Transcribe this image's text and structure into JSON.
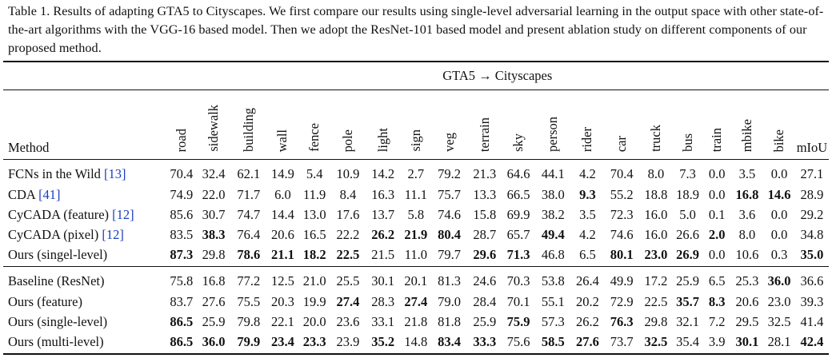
{
  "caption": "Table 1. Results of adapting GTA5 to Cityscapes. We first compare our results using single-level adversarial learning in the output space with other state-of-the-art algorithms with the VGG-16 based model. Then we adopt the ResNet-101 based model and present ablation study on different components of our proposed method.",
  "table": {
    "super_header": "GTA5 → Cityscapes",
    "method_header": "Method",
    "class_headers": [
      "road",
      "sidewalk",
      "building",
      "wall",
      "fence",
      "pole",
      "light",
      "sign",
      "veg",
      "terrain",
      "sky",
      "person",
      "rider",
      "car",
      "truck",
      "bus",
      "train",
      "mbike",
      "bike"
    ],
    "miou_header": "mIoU",
    "groups": [
      {
        "rows": [
          {
            "name": "FCNs in the Wild",
            "cite": "[13]",
            "values": [
              "70.4",
              "32.4",
              "62.1",
              "14.9",
              "5.4",
              "10.9",
              "14.2",
              "2.7",
              "79.2",
              "21.3",
              "64.6",
              "44.1",
              "4.2",
              "70.4",
              "8.0",
              "7.3",
              "0.0",
              "3.5",
              "0.0",
              "27.1"
            ],
            "bold": []
          },
          {
            "name": "CDA",
            "cite": "[41]",
            "values": [
              "74.9",
              "22.0",
              "71.7",
              "6.0",
              "11.9",
              "8.4",
              "16.3",
              "11.1",
              "75.7",
              "13.3",
              "66.5",
              "38.0",
              "9.3",
              "55.2",
              "18.8",
              "18.9",
              "0.0",
              "16.8",
              "14.6",
              "28.9"
            ],
            "bold": [
              12,
              17,
              18
            ]
          },
          {
            "name": "CyCADA (feature)",
            "cite": "[12]",
            "values": [
              "85.6",
              "30.7",
              "74.7",
              "14.4",
              "13.0",
              "17.6",
              "13.7",
              "5.8",
              "74.6",
              "15.8",
              "69.9",
              "38.2",
              "3.5",
              "72.3",
              "16.0",
              "5.0",
              "0.1",
              "3.6",
              "0.0",
              "29.2"
            ],
            "bold": []
          },
          {
            "name": "CyCADA (pixel)",
            "cite": "[12]",
            "values": [
              "83.5",
              "38.3",
              "76.4",
              "20.6",
              "16.5",
              "22.2",
              "26.2",
              "21.9",
              "80.4",
              "28.7",
              "65.7",
              "49.4",
              "4.2",
              "74.6",
              "16.0",
              "26.6",
              "2.0",
              "8.0",
              "0.0",
              "34.8"
            ],
            "bold": [
              1,
              6,
              7,
              8,
              11,
              16
            ]
          },
          {
            "name": "Ours (singel-level)",
            "cite": "",
            "values": [
              "87.3",
              "29.8",
              "78.6",
              "21.1",
              "18.2",
              "22.5",
              "21.5",
              "11.0",
              "79.7",
              "29.6",
              "71.3",
              "46.8",
              "6.5",
              "80.1",
              "23.0",
              "26.9",
              "0.0",
              "10.6",
              "0.3",
              "35.0"
            ],
            "bold": [
              0,
              2,
              3,
              4,
              5,
              9,
              10,
              13,
              14,
              15,
              19
            ]
          }
        ]
      },
      {
        "rows": [
          {
            "name": "Baseline (ResNet)",
            "cite": "",
            "values": [
              "75.8",
              "16.8",
              "77.2",
              "12.5",
              "21.0",
              "25.5",
              "30.1",
              "20.1",
              "81.3",
              "24.6",
              "70.3",
              "53.8",
              "26.4",
              "49.9",
              "17.2",
              "25.9",
              "6.5",
              "25.3",
              "36.0",
              "36.6"
            ],
            "bold": [
              18
            ]
          },
          {
            "name": "Ours (feature)",
            "cite": "",
            "values": [
              "83.7",
              "27.6",
              "75.5",
              "20.3",
              "19.9",
              "27.4",
              "28.3",
              "27.4",
              "79.0",
              "28.4",
              "70.1",
              "55.1",
              "20.2",
              "72.9",
              "22.5",
              "35.7",
              "8.3",
              "20.6",
              "23.0",
              "39.3"
            ],
            "bold": [
              5,
              7,
              15,
              16
            ]
          },
          {
            "name": "Ours (single-level)",
            "cite": "",
            "values": [
              "86.5",
              "25.9",
              "79.8",
              "22.1",
              "20.0",
              "23.6",
              "33.1",
              "21.8",
              "81.8",
              "25.9",
              "75.9",
              "57.3",
              "26.2",
              "76.3",
              "29.8",
              "32.1",
              "7.2",
              "29.5",
              "32.5",
              "41.4"
            ],
            "bold": [
              0,
              10,
              13
            ]
          },
          {
            "name": "Ours (multi-level)",
            "cite": "",
            "values": [
              "86.5",
              "36.0",
              "79.9",
              "23.4",
              "23.3",
              "23.9",
              "35.2",
              "14.8",
              "83.4",
              "33.3",
              "75.6",
              "58.5",
              "27.6",
              "73.7",
              "32.5",
              "35.4",
              "3.9",
              "30.1",
              "28.1",
              "42.4"
            ],
            "bold": [
              0,
              1,
              2,
              3,
              4,
              6,
              8,
              9,
              11,
              12,
              14,
              17,
              19
            ]
          }
        ]
      }
    ]
  }
}
